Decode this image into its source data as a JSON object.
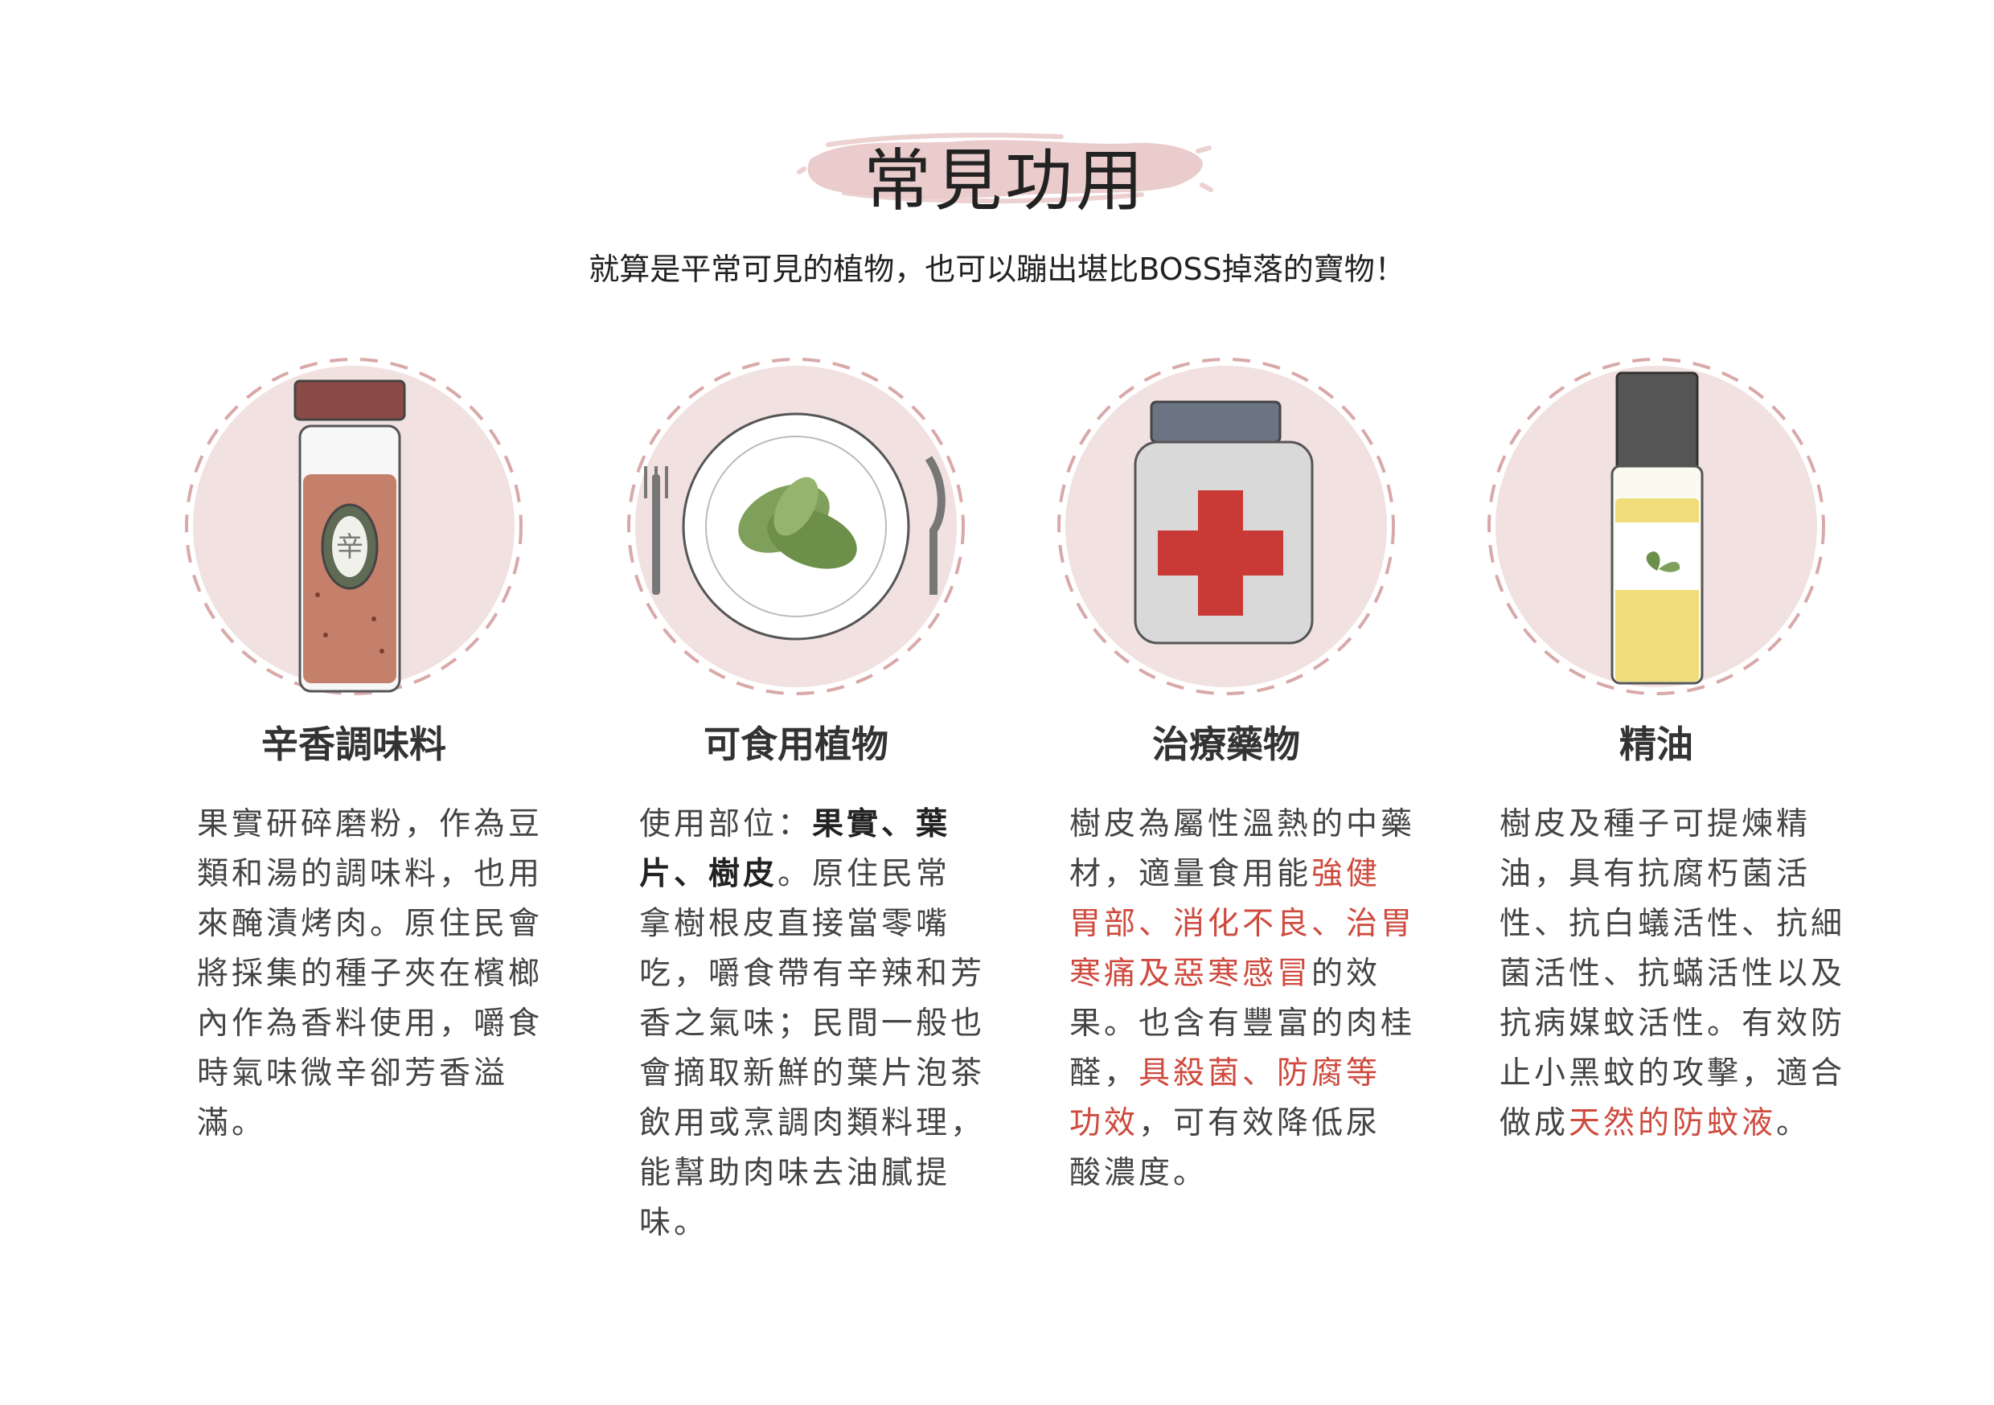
{
  "header": {
    "title": "常見功用",
    "subtitle": "就算是平常可見的植物，也可以蹦出堪比BOSS掉落的寶物！"
  },
  "colors": {
    "circle_fill": "#f1e1e1",
    "dash": "#d9a9a9",
    "highlight": "#cf4a3e",
    "brush": "#e8c6c6"
  },
  "cards": [
    {
      "icon": "spice-jar-icon",
      "icon_label": "辛",
      "name": "辛香調味料",
      "body": [
        "果實研碎磨粉，作為豆類和湯的調味料，也用來醃漬烤肉。原住民會將採集的種子夾在檳榔內作為香料使用，嚼食時氣味微辛卻芳香溢滿。"
      ]
    },
    {
      "icon": "plate-of-leaves-icon",
      "name": "可食用植物",
      "body": [
        "使用部位：",
        "果實、葉片、樹皮",
        "。原住民常拿樹根皮直接當零嘴吃，嚼食帶有辛辣和芳香之氣味；民間一般也會摘取新鮮的葉片泡茶飲用或烹調肉類料理，能幫助肉味去油膩提味。"
      ]
    },
    {
      "icon": "medicine-bottle-icon",
      "name": "治療藥物",
      "body": [
        "樹皮為屬性溫熱的中藥材，適量食用能",
        "強健胃部、消化不良、治胃寒痛及惡寒感冒",
        "的效果。也含有豐富的肉桂醛，",
        "具殺菌、防腐等功效",
        "，可有效降低尿酸濃度。"
      ]
    },
    {
      "icon": "essential-oil-bottle-icon",
      "name": "精油",
      "body": [
        "樹皮及種子可提煉精油，具有抗腐朽菌活性、抗白蟻活性、抗細菌活性、抗蟎活性以及抗病媒蚊活性。有效防止小黑蚊的攻擊，適合做成",
        "天然的防蚊液",
        "。"
      ]
    }
  ]
}
